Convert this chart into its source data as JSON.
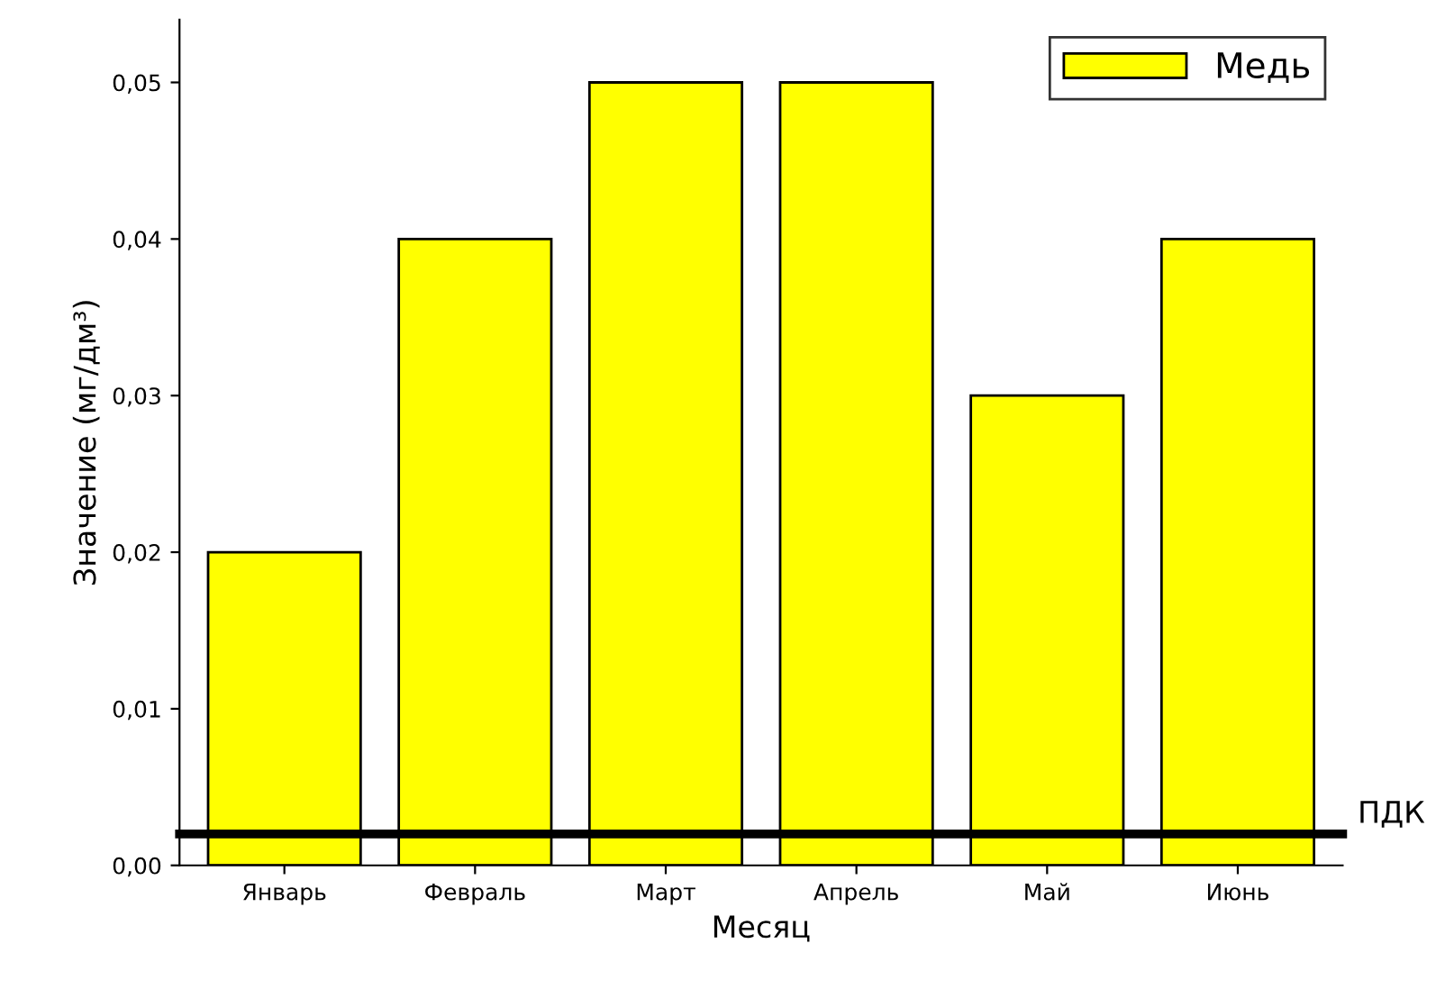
{
  "chart_data": {
    "type": "bar",
    "xlabel": "Месяц",
    "ylabel": "Значение (мг/дм³)",
    "categories": [
      "Январь",
      "Февраль",
      "Март",
      "Апрель",
      "Май",
      "Июнь"
    ],
    "series": [
      {
        "name": "Медь",
        "color": "#ffff00",
        "values": [
          0.02,
          0.04,
          0.05,
          0.05,
          0.03,
          0.04
        ]
      }
    ],
    "ylim": [
      0,
      0.054
    ],
    "yticks": [
      {
        "value": 0,
        "label": "0,00"
      },
      {
        "value": 0.01,
        "label": "0,01"
      },
      {
        "value": 0.02,
        "label": "0,02"
      },
      {
        "value": 0.03,
        "label": "0,03"
      },
      {
        "value": 0.04,
        "label": "0,04"
      },
      {
        "value": 0.05,
        "label": "0,05"
      }
    ],
    "ref_lines": [
      {
        "axis": "y",
        "value": 0.002,
        "label": "ПДК",
        "color": "#000000"
      }
    ],
    "grid": false,
    "legend": "top right"
  }
}
